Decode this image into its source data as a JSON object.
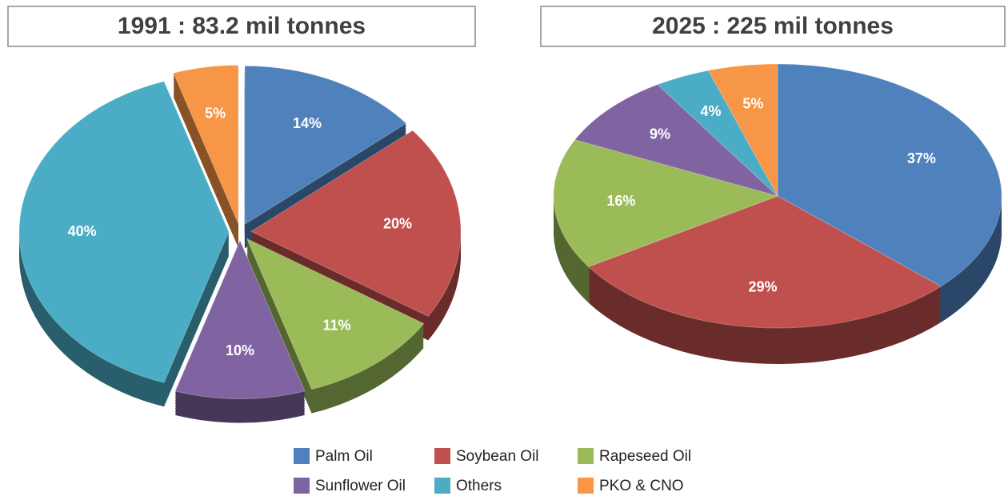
{
  "chart_data": {
    "type": "pie",
    "categories": [
      "Palm Oil",
      "Soybean Oil",
      "Rapeseed Oil",
      "Sunflower Oil",
      "Others",
      "PKO & CNO"
    ],
    "colors": [
      "#4f81bd",
      "#c0504d",
      "#9bbb59",
      "#8064a2",
      "#4bacc6",
      "#f79646"
    ],
    "pies": [
      {
        "title": "1991 : 83.2 mil tonnes",
        "values": [
          14,
          20,
          11,
          10,
          40,
          5
        ],
        "value_labels": [
          "14%",
          "20%",
          "11%",
          "10%",
          "40%",
          "5%"
        ]
      },
      {
        "title": "2025 : 225 mil tonnes",
        "values": [
          37,
          29,
          16,
          9,
          4,
          5
        ],
        "value_labels": [
          "37%",
          "29%",
          "16%",
          "9%",
          "4%",
          "5%"
        ]
      }
    ]
  }
}
